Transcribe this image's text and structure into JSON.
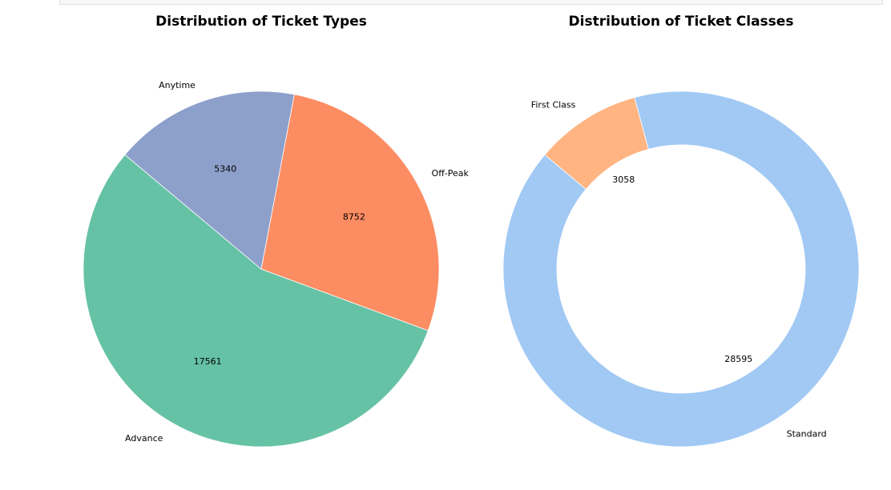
{
  "chart_data": [
    {
      "type": "pie",
      "title": "Distribution of Ticket Types",
      "categories": [
        "Advance",
        "Off-Peak",
        "Anytime"
      ],
      "values": [
        17561,
        8752,
        5340
      ],
      "colors": [
        "#66c2a5",
        "#fc8d62",
        "#8da0cb"
      ],
      "start_angle_deg": 140,
      "donut": false
    },
    {
      "type": "pie",
      "title": "Distribution of Ticket Classes",
      "categories": [
        "Standard",
        "First Class"
      ],
      "values": [
        28595,
        3058
      ],
      "colors": [
        "#a1c9f4",
        "#ffb482"
      ],
      "start_angle_deg": 140,
      "donut": true
    }
  ]
}
